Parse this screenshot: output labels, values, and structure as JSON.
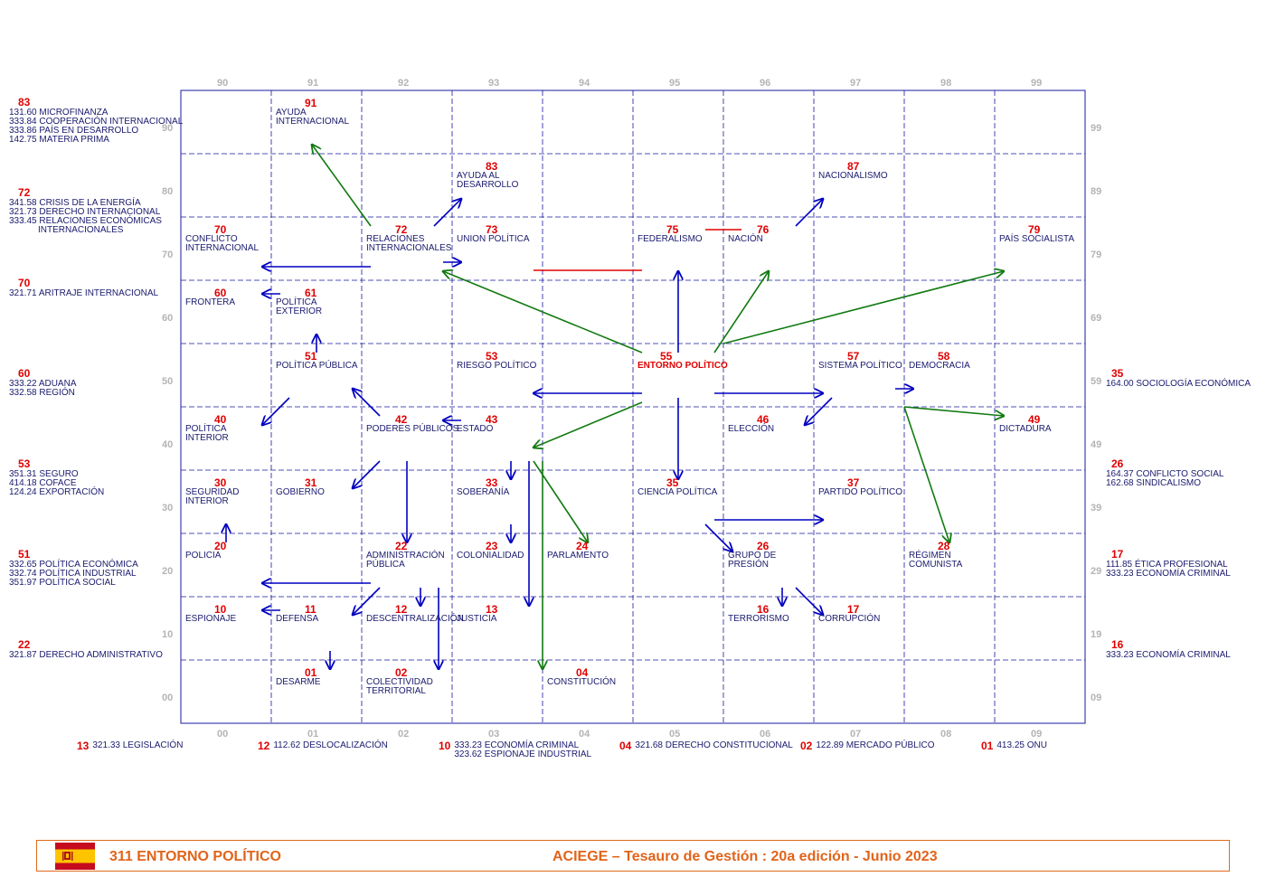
{
  "axis": {
    "top": [
      "90",
      "91",
      "92",
      "93",
      "94",
      "95",
      "96",
      "97",
      "98",
      "99"
    ],
    "bottom": [
      "00",
      "01",
      "02",
      "03",
      "04",
      "05",
      "06",
      "07",
      "08",
      "09"
    ],
    "left": [
      "90",
      "80",
      "70",
      "60",
      "50",
      "40",
      "30",
      "20",
      "10",
      "00"
    ],
    "right": [
      "99",
      "89",
      "79",
      "69",
      "59",
      "49",
      "39",
      "29",
      "19",
      "09"
    ]
  },
  "central": {
    "code": "55",
    "label": "ENTORNO POLÍTICO"
  },
  "terms": [
    {
      "code": "91",
      "lines": [
        "AYUDA",
        "INTERNACIONAL"
      ]
    },
    {
      "code": "83",
      "lines": [
        "AYUDA AL",
        "DESARROLLO"
      ]
    },
    {
      "code": "87",
      "lines": [
        "NACIONALISMO"
      ]
    },
    {
      "code": "70",
      "lines": [
        "CONFLICTO",
        "INTERNACIONAL"
      ]
    },
    {
      "code": "72",
      "lines": [
        "RELACIONES",
        "INTERNACIONALES"
      ]
    },
    {
      "code": "73",
      "lines": [
        "UNION POLÍTICA"
      ]
    },
    {
      "code": "75",
      "lines": [
        "FEDERALISMO"
      ]
    },
    {
      "code": "76",
      "lines": [
        "NACIÓN"
      ]
    },
    {
      "code": "79",
      "lines": [
        "PAÍS SOCIALISTA"
      ]
    },
    {
      "code": "60",
      "lines": [
        "FRONTERA"
      ]
    },
    {
      "code": "61",
      "lines": [
        "POLÍTICA",
        "EXTERIOR"
      ]
    },
    {
      "code": "51",
      "lines": [
        "POLÍTICA PÚBLICA"
      ]
    },
    {
      "code": "53",
      "lines": [
        "RIESGO POLÍTICO"
      ]
    },
    {
      "code": "57",
      "lines": [
        "SISTEMA POLÍTICO"
      ]
    },
    {
      "code": "58",
      "lines": [
        "DEMOCRACIA"
      ]
    },
    {
      "code": "40",
      "lines": [
        "POLÍTICA",
        "INTERIOR"
      ]
    },
    {
      "code": "42",
      "lines": [
        "PODERES PÚBLICOS"
      ]
    },
    {
      "code": "43",
      "lines": [
        "ESTADO"
      ]
    },
    {
      "code": "46",
      "lines": [
        "ELECCIÓN"
      ]
    },
    {
      "code": "49",
      "lines": [
        "DICTADURA"
      ]
    },
    {
      "code": "30",
      "lines": [
        "SEGURIDAD",
        "INTERIOR"
      ]
    },
    {
      "code": "31",
      "lines": [
        "GOBIERNO"
      ]
    },
    {
      "code": "33",
      "lines": [
        "SOBERANÍA"
      ]
    },
    {
      "code": "35",
      "lines": [
        "CIENCIA POLÍTICA"
      ]
    },
    {
      "code": "37",
      "lines": [
        "PARTIDO POLÍTICO"
      ]
    },
    {
      "code": "20",
      "lines": [
        "POLICIA"
      ]
    },
    {
      "code": "22",
      "lines": [
        "ADMINISTRACIÓN",
        "PÚBLICA"
      ]
    },
    {
      "code": "23",
      "lines": [
        "COLONIALIDAD"
      ]
    },
    {
      "code": "24",
      "lines": [
        "PARLAMENTO"
      ]
    },
    {
      "code": "26",
      "lines": [
        "GRUPO DE",
        "PRESIÓN"
      ]
    },
    {
      "code": "28",
      "lines": [
        "RÉGIMEN",
        "COMUNISTA"
      ]
    },
    {
      "code": "10",
      "lines": [
        "ESPIONAJE"
      ]
    },
    {
      "code": "11",
      "lines": [
        "DEFENSA"
      ]
    },
    {
      "code": "12",
      "lines": [
        "DESCENTRALIZACIÓN"
      ]
    },
    {
      "code": "13",
      "lines": [
        "JUSTICIA"
      ]
    },
    {
      "code": "16",
      "lines": [
        "TERRORISMO"
      ]
    },
    {
      "code": "17",
      "lines": [
        "CORRUPCIÓN"
      ]
    },
    {
      "code": "01",
      "lines": [
        "DESARME"
      ]
    },
    {
      "code": "02",
      "lines": [
        "COLECTIVIDAD",
        "TERRITORIAL"
      ]
    },
    {
      "code": "04",
      "lines": [
        "CONSTITUCIÓN"
      ]
    }
  ],
  "left_refs": [
    {
      "code": "83",
      "lines": [
        "131.60 MICROFINANZA",
        "333.84 COOPERACIÓN INTERNACIONAL",
        "333.86 PAÍS EN DESARROLLO",
        "142.75 MATERIA PRIMA"
      ]
    },
    {
      "code": "72",
      "lines": [
        "341.58 CRISIS DE LA ENERGÍA",
        "321.73 DERECHO INTERNACIONAL",
        "333.45 RELACIONES ECONÓMICAS",
        "INTERNACIONALES"
      ]
    },
    {
      "code": "70",
      "lines": [
        "321.71 ARITRAJE INTERNACIONAL"
      ]
    },
    {
      "code": "60",
      "lines": [
        "333.22 ADUANA",
        "332.58 REGIÓN"
      ]
    },
    {
      "code": "53",
      "lines": [
        "351.31 SEGURO",
        "414.18 COFACE",
        "124.24 EXPORTACIÓN"
      ]
    },
    {
      "code": "51",
      "lines": [
        "332.65 POLÍTICA ECONÓMICA",
        "332.74 POLÍTICA INDUSTRIAL",
        "351.97 POLÍTICA SOCIAL"
      ]
    },
    {
      "code": "22",
      "lines": [
        "321.87 DERECHO ADMINISTRATIVO"
      ]
    }
  ],
  "right_refs": [
    {
      "code": "35",
      "lines": [
        "164.00 SOCIOLOGÍA ECONÓMICA"
      ]
    },
    {
      "code": "26",
      "lines": [
        "164.37 CONFLICTO SOCIAL",
        "162.68 SINDICALISMO"
      ]
    },
    {
      "code": "17",
      "lines": [
        "111.85 ÉTICA PROFESIONAL",
        "333.23 ECONOMÍA CRIMINAL"
      ]
    },
    {
      "code": "16",
      "lines": [
        "333.23 ECONOMÍA CRIMINAL"
      ]
    }
  ],
  "bottom_refs": [
    {
      "code": "13",
      "lines": [
        "321.33 LEGISLACIÓN"
      ]
    },
    {
      "code": "12",
      "lines": [
        "112.62 DESLOCALIZACIÓN"
      ]
    },
    {
      "code": "10",
      "lines": [
        "333.23 ECONOMÍA CRIMINAL",
        "323.62 ESPIONAJE INDUSTRIAL"
      ]
    },
    {
      "code": "04",
      "lines": [
        "321.68 DERECHO CONSTITUCIONAL"
      ]
    },
    {
      "code": "02",
      "lines": [
        "122.89 MERCADO PÚBLICO"
      ]
    },
    {
      "code": "01",
      "lines": [
        "413.25 ONU"
      ]
    }
  ],
  "footer": {
    "title": "311  ENTORNO POLÍTICO",
    "publisher": "ACIEGE  –  Tesauro de Gestión  :   20a edición   -  Junio 2023",
    "flag_icon": "spain-flag-icon"
  },
  "colors": {
    "blue_arrow": "#0000c0",
    "green_arrow": "#127a12",
    "red_line": "#e00000",
    "code_red": "#e00000",
    "footer_orange": "#e0641a"
  }
}
